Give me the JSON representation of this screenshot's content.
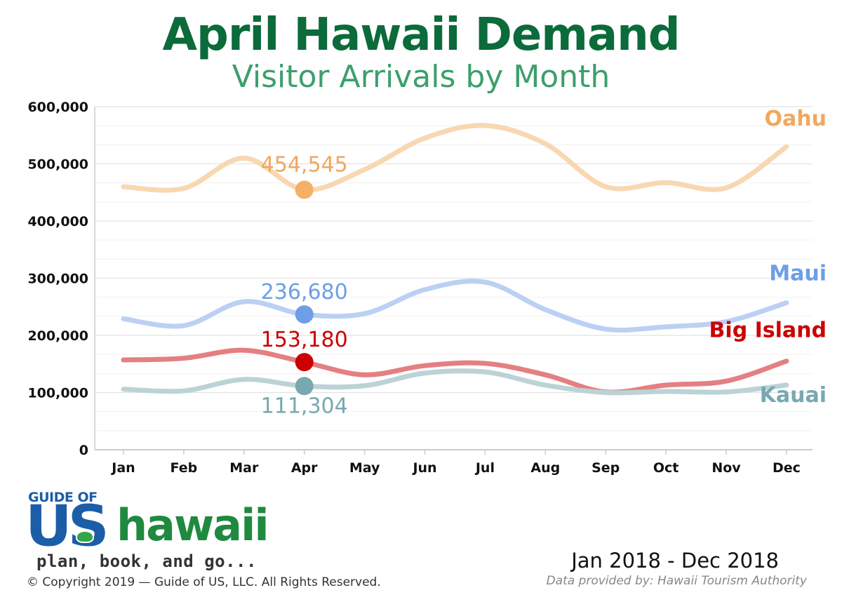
{
  "title": "April Hawaii Demand",
  "subtitle": "Visitor Arrivals by Month",
  "chart_data": {
    "type": "line",
    "categories": [
      "Jan",
      "Feb",
      "Mar",
      "Apr",
      "May",
      "Jun",
      "Jul",
      "Aug",
      "Sep",
      "Oct",
      "Nov",
      "Dec"
    ],
    "ylim": [
      0,
      600000
    ],
    "yticks": [
      {
        "value": 0,
        "label": "0"
      },
      {
        "value": 100000,
        "label": "100,000"
      },
      {
        "value": 200000,
        "label": "200,000"
      },
      {
        "value": 300000,
        "label": "300,000"
      },
      {
        "value": 400000,
        "label": "400,000"
      },
      {
        "value": 500000,
        "label": "500,000"
      },
      {
        "value": 600000,
        "label": "600,000"
      }
    ],
    "grid": true,
    "highlight_category": "Apr",
    "series": [
      {
        "name": "Oahu",
        "color": "#f8d7b1",
        "marker_color": "#f4b066",
        "label_color": "#f0a860",
        "highlight_label": "454,545",
        "values": [
          460000,
          457000,
          510000,
          454545,
          490000,
          545000,
          567000,
          535000,
          460000,
          467000,
          458000,
          530000
        ]
      },
      {
        "name": "Maui",
        "color": "#bcd0f4",
        "marker_color": "#6e9ee6",
        "label_color": "#6e9ee6",
        "highlight_label": "236,680",
        "values": [
          229000,
          217000,
          259000,
          236680,
          238000,
          280000,
          293000,
          245000,
          211000,
          215000,
          224000,
          257000
        ]
      },
      {
        "name": "Big Island",
        "color": "#e47f82",
        "marker_color": "#cc0000",
        "label_color": "#cc0000",
        "highlight_label": "153,180",
        "values": [
          157000,
          160000,
          174000,
          153180,
          131000,
          147000,
          151000,
          131000,
          101000,
          113000,
          120000,
          155000
        ]
      },
      {
        "name": "Kauai",
        "color": "#bcd3d6",
        "marker_color": "#78a8b0",
        "label_color": "#78a8b0",
        "highlight_label": "111,304",
        "values": [
          106000,
          103000,
          123000,
          111304,
          112000,
          134000,
          136000,
          113000,
          100000,
          102000,
          101000,
          113000
        ]
      }
    ]
  },
  "logo": {
    "top_text": "GUIDE OF",
    "brand_us": "US",
    "brand_name": "hawaii",
    "tagline": "plan, book, and go..."
  },
  "footer": {
    "copyright": "© Copyright 2019 — Guide of US, LLC. All Rights Reserved.",
    "date_range": "Jan 2018 - Dec 2018",
    "source": "Data provided by: Hawaii Tourism Authority"
  }
}
